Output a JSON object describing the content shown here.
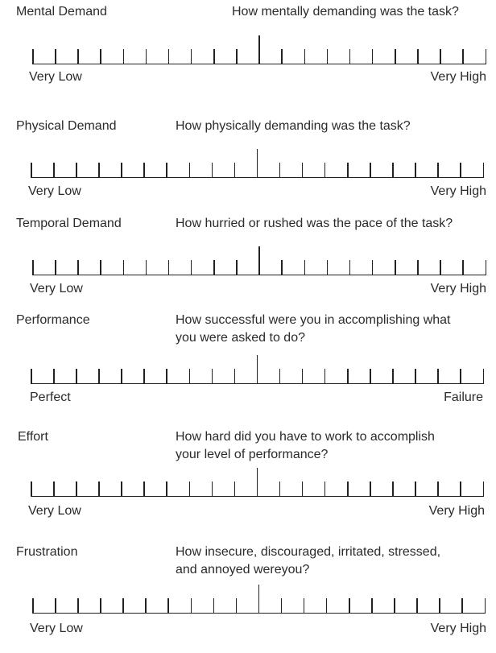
{
  "scales": [
    {
      "title": "Mental Demand",
      "question": [
        "How mentally demanding was the task?"
      ],
      "low": "Very Low",
      "high": "Very High"
    },
    {
      "title": "Physical Demand",
      "question": [
        "How physically demanding was the task?"
      ],
      "low": "Very Low",
      "high": "Very High"
    },
    {
      "title": "Temporal Demand",
      "question": [
        "How hurried or rushed was the pace of the task?"
      ],
      "low": "Very Low",
      "high": "Very High"
    },
    {
      "title": "Performance",
      "question": [
        "How successful were you in accomplishing what",
        "you were asked to do?"
      ],
      "low": "Perfect",
      "high": "Failure"
    },
    {
      "title": "Effort",
      "question": [
        "How hard did you have to work to  accomplish",
        "your level of performance?"
      ],
      "low": "Very Low",
      "high": "Very High"
    },
    {
      "title": "Frustration",
      "question": [
        "How insecure, discouraged, irritated, stressed,",
        "and annoyed wereyou?"
      ],
      "low": "Very Low",
      "high": "Very High"
    }
  ],
  "tick_count": 21
}
